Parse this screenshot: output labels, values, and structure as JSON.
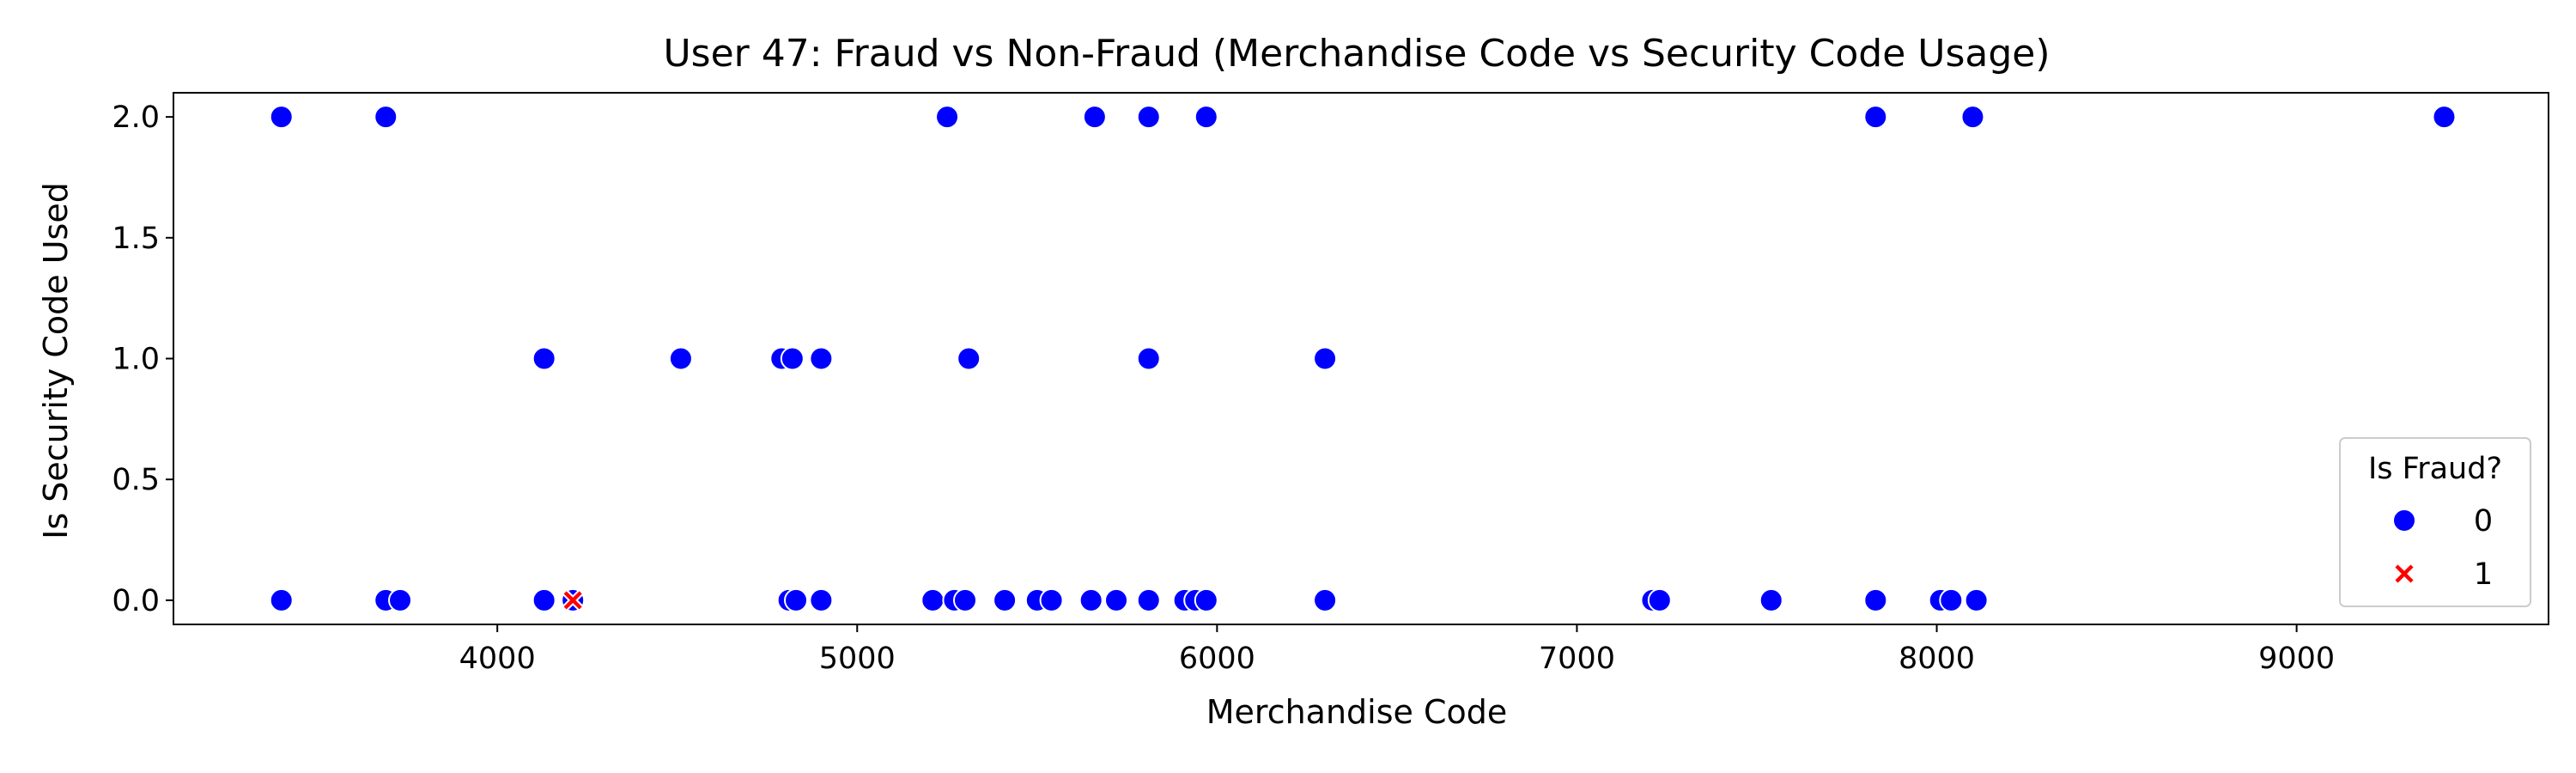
{
  "chart_data": {
    "type": "scatter",
    "title": "User 47: Fraud vs Non-Fraud (Merchandise Code vs Security Code Usage)",
    "xlabel": "Merchandise Code",
    "ylabel": "Is Security Code Used",
    "xlim": [
      3100,
      9700
    ],
    "ylim": [
      -0.1,
      2.1
    ],
    "xticks": [
      4000,
      5000,
      6000,
      7000,
      8000,
      9000
    ],
    "xtick_labels": [
      "4000",
      "5000",
      "6000",
      "7000",
      "8000",
      "9000"
    ],
    "yticks": [
      0.0,
      0.5,
      1.0,
      1.5,
      2.0
    ],
    "ytick_labels": [
      "0.0",
      "0.5",
      "1.0",
      "1.5",
      "2.0"
    ],
    "grid": false,
    "legend": {
      "title": "Is Fraud?",
      "position": "lower-right",
      "entries": [
        {
          "label": "0",
          "marker": "circle",
          "color": "#0000ff"
        },
        {
          "label": "1",
          "marker": "x",
          "color": "#ff0000"
        }
      ]
    },
    "series": [
      {
        "name": "0",
        "marker": "circle",
        "color": "#0000ff",
        "points": [
          [
            3400,
            2
          ],
          [
            3690,
            2
          ],
          [
            5250,
            2
          ],
          [
            5660,
            2
          ],
          [
            5810,
            2
          ],
          [
            5970,
            2
          ],
          [
            7830,
            2
          ],
          [
            8100,
            2
          ],
          [
            9410,
            2
          ],
          [
            4130,
            1
          ],
          [
            4510,
            1
          ],
          [
            4790,
            1
          ],
          [
            4820,
            1
          ],
          [
            4900,
            1
          ],
          [
            5310,
            1
          ],
          [
            5810,
            1
          ],
          [
            6300,
            1
          ],
          [
            3400,
            0
          ],
          [
            3690,
            0
          ],
          [
            3730,
            0
          ],
          [
            4130,
            0
          ],
          [
            4210,
            0
          ],
          [
            4810,
            0
          ],
          [
            4830,
            0
          ],
          [
            4900,
            0
          ],
          [
            5210,
            0
          ],
          [
            5270,
            0
          ],
          [
            5300,
            0
          ],
          [
            5410,
            0
          ],
          [
            5500,
            0
          ],
          [
            5540,
            0
          ],
          [
            5650,
            0
          ],
          [
            5720,
            0
          ],
          [
            5810,
            0
          ],
          [
            5910,
            0
          ],
          [
            5940,
            0
          ],
          [
            5970,
            0
          ],
          [
            6300,
            0
          ],
          [
            7210,
            0
          ],
          [
            7230,
            0
          ],
          [
            7540,
            0
          ],
          [
            7830,
            0
          ],
          [
            8010,
            0
          ],
          [
            8040,
            0
          ],
          [
            8110,
            0
          ]
        ]
      },
      {
        "name": "1",
        "marker": "x",
        "color": "#ff0000",
        "points": [
          [
            4210,
            0
          ]
        ]
      }
    ]
  }
}
